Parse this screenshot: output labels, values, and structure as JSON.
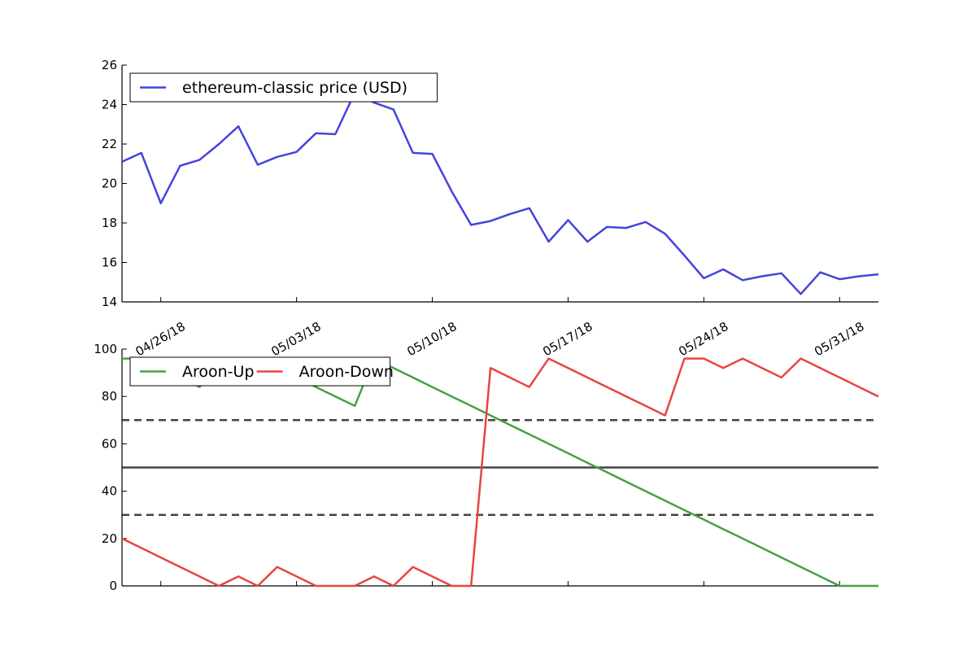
{
  "chart_data": [
    {
      "type": "line",
      "title": "",
      "xlabel": "",
      "ylabel": "",
      "ylim": [
        14,
        26
      ],
      "yticks": [
        14,
        16,
        18,
        20,
        22,
        24,
        26
      ],
      "xlim": [
        "2018-04-24",
        "2018-06-02"
      ],
      "xticks": [
        {
          "date": "2018-04-26",
          "label": "04/26/18"
        },
        {
          "date": "2018-05-03",
          "label": "05/03/18"
        },
        {
          "date": "2018-05-10",
          "label": "05/10/18"
        },
        {
          "date": "2018-05-17",
          "label": "05/17/18"
        },
        {
          "date": "2018-05-24",
          "label": "05/24/18"
        },
        {
          "date": "2018-05-31",
          "label": "05/31/18"
        }
      ],
      "legend_position": "top-left",
      "grid": false,
      "x": [
        "2018-04-24",
        "2018-04-25",
        "2018-04-26",
        "2018-04-27",
        "2018-04-28",
        "2018-04-29",
        "2018-04-30",
        "2018-05-01",
        "2018-05-02",
        "2018-05-03",
        "2018-05-04",
        "2018-05-05",
        "2018-05-06",
        "2018-05-07",
        "2018-05-08",
        "2018-05-09",
        "2018-05-10",
        "2018-05-11",
        "2018-05-12",
        "2018-05-13",
        "2018-05-14",
        "2018-05-15",
        "2018-05-16",
        "2018-05-17",
        "2018-05-18",
        "2018-05-19",
        "2018-05-20",
        "2018-05-21",
        "2018-05-22",
        "2018-05-23",
        "2018-05-24",
        "2018-05-25",
        "2018-05-26",
        "2018-05-27",
        "2018-05-28",
        "2018-05-29",
        "2018-05-30",
        "2018-05-31",
        "2018-06-01",
        "2018-06-02"
      ],
      "series": [
        {
          "name": "ethereum-classic price (USD)",
          "color": "#4444dd",
          "values": [
            21.1,
            21.55,
            19.0,
            20.9,
            21.2,
            22.0,
            22.9,
            20.95,
            21.35,
            21.6,
            22.55,
            22.5,
            24.6,
            24.1,
            23.75,
            21.55,
            21.5,
            19.6,
            17.9,
            18.1,
            18.45,
            18.75,
            17.05,
            18.15,
            17.05,
            17.8,
            17.75,
            18.05,
            17.45,
            16.35,
            15.2,
            15.65,
            15.1,
            15.3,
            15.45,
            14.4,
            15.5,
            15.15,
            15.3,
            15.4
          ]
        }
      ]
    },
    {
      "type": "line",
      "title": "",
      "xlabel": "",
      "ylabel": "",
      "ylim": [
        0,
        100
      ],
      "yticks": [
        0,
        20,
        40,
        60,
        80,
        100
      ],
      "xlim": [
        "2018-04-24",
        "2018-06-02"
      ],
      "legend_position": "top-left",
      "grid": false,
      "reference_lines": [
        {
          "y": 70,
          "style": "dashed",
          "color": "#444444"
        },
        {
          "y": 50,
          "style": "solid",
          "color": "#444444"
        },
        {
          "y": 30,
          "style": "dashed",
          "color": "#444444"
        }
      ],
      "x": [
        "2018-04-24",
        "2018-04-25",
        "2018-04-26",
        "2018-04-27",
        "2018-04-28",
        "2018-04-29",
        "2018-04-30",
        "2018-05-01",
        "2018-05-02",
        "2018-05-03",
        "2018-05-04",
        "2018-05-05",
        "2018-05-06",
        "2018-05-07",
        "2018-05-08",
        "2018-05-09",
        "2018-05-10",
        "2018-05-11",
        "2018-05-12",
        "2018-05-13",
        "2018-05-14",
        "2018-05-15",
        "2018-05-16",
        "2018-05-17",
        "2018-05-18",
        "2018-05-19",
        "2018-05-20",
        "2018-05-21",
        "2018-05-22",
        "2018-05-23",
        "2018-05-24",
        "2018-05-25",
        "2018-05-26",
        "2018-05-27",
        "2018-05-28",
        "2018-05-29",
        "2018-05-30",
        "2018-05-31",
        "2018-06-01",
        "2018-06-02"
      ],
      "series": [
        {
          "name": "Aroon-Up",
          "color": "#44a244",
          "values": [
            96,
            96,
            92,
            88,
            84,
            92,
            88,
            96,
            92,
            88,
            84,
            80,
            76,
            96,
            92,
            88,
            84,
            80,
            76,
            72,
            68,
            64,
            60,
            56,
            52,
            48,
            44,
            40,
            36,
            32,
            28,
            24,
            20,
            16,
            12,
            8,
            4,
            0,
            0,
            0
          ]
        },
        {
          "name": "Aroon-Down",
          "color": "#e84444",
          "values": [
            20,
            16,
            12,
            8,
            4,
            0,
            4,
            0,
            8,
            4,
            0,
            0,
            0,
            4,
            0,
            8,
            4,
            0,
            0,
            92,
            88,
            84,
            96,
            92,
            88,
            84,
            80,
            76,
            72,
            96,
            96,
            92,
            96,
            92,
            88,
            96,
            92,
            88,
            84,
            80
          ]
        }
      ]
    }
  ]
}
